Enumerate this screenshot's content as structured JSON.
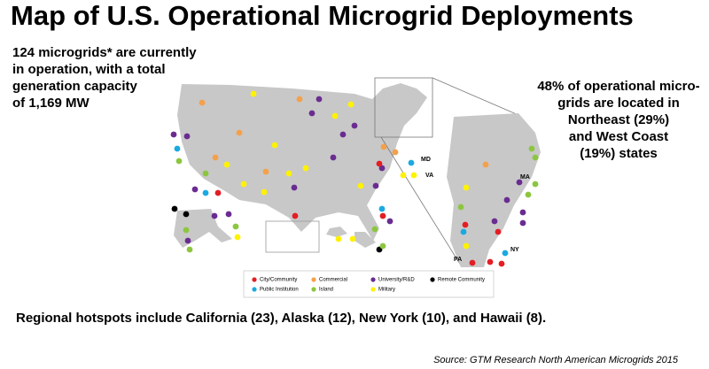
{
  "header": {
    "title": "Map of U.S. Operational Microgrid Deployments"
  },
  "left_note": [
    "124 microgrids* are currently",
    "in operation, with a total",
    "generation capacity",
    "of 1,169 MW"
  ],
  "right_note": [
    "48% of operational micro-",
    "grids are located in",
    "Northeast (29%)",
    "and West Coast",
    "(19%) states"
  ],
  "state_labels": [
    "MD",
    "VA",
    "MA",
    "NY",
    "PA"
  ],
  "legend": [
    {
      "label": "City/Community",
      "color": "#e31e24"
    },
    {
      "label": "Commercial",
      "color": "#f5a04a"
    },
    {
      "label": "University/R&D",
      "color": "#6a2c91"
    },
    {
      "label": "Remote Community",
      "color": "#000000"
    },
    {
      "label": "Public Institution",
      "color": "#1ba9e1"
    },
    {
      "label": "Island",
      "color": "#8cc63f"
    },
    {
      "label": "Military",
      "color": "#fff200"
    }
  ],
  "footer": {
    "hotspots": "Regional hotspots include California (23), Alaska (12), New York (10), and Hawaii (8).",
    "source": "Source: GTM Research North American Microgrids 2015"
  }
}
